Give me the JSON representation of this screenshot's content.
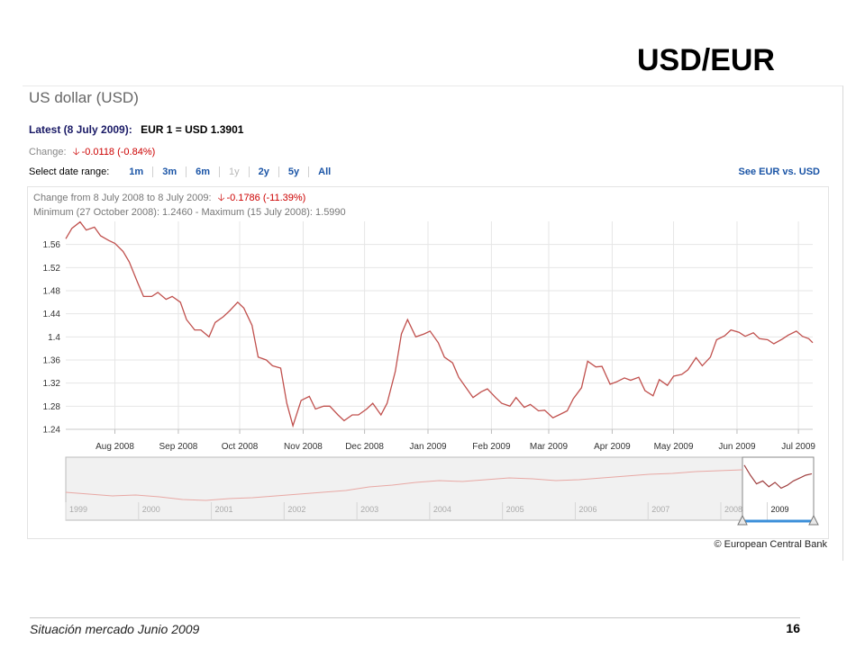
{
  "slide_title": "USD/EUR",
  "box_title": "US dollar (USD)",
  "latest_label": "Latest (8 July 2009):",
  "latest_value": "EUR 1 = USD 1.3901",
  "change_label": "Change:",
  "change_value": "-0.0118 (-0.84%)",
  "range_label": "Select date range:",
  "range_options": [
    {
      "label": "1m",
      "enabled": true
    },
    {
      "label": "3m",
      "enabled": true
    },
    {
      "label": "6m",
      "enabled": true
    },
    {
      "label": "1y",
      "enabled": false
    },
    {
      "label": "2y",
      "enabled": true
    },
    {
      "label": "5y",
      "enabled": true
    },
    {
      "label": "All",
      "enabled": true
    }
  ],
  "see_link": "See EUR vs. USD",
  "info_change_label": "Change from 8 July 2008 to 8 July 2009:",
  "info_change_value": "-0.1786 (-11.39%)",
  "info_minmax": "Minimum (27 October 2008): 1.2460 - Maximum (15 July 2008): 1.5990",
  "copyright": "© European Central Bank",
  "footer_left": "Situación mercado Junio 2009",
  "footer_right": "16",
  "colors": {
    "line": "#c0504d",
    "overview_line": "#e8a8a4",
    "grid": "#e6e6e6",
    "accent": "#1a54a6",
    "change": "#cc0000"
  },
  "chart_data": {
    "type": "line",
    "title": "",
    "xlabel": "",
    "ylabel": "",
    "ylim": [
      1.24,
      1.6
    ],
    "yticks": [
      1.24,
      1.28,
      1.32,
      1.36,
      1.4,
      1.44,
      1.48,
      1.52,
      1.56
    ],
    "ytick_labels": [
      "1.24",
      "1.28",
      "1.32",
      "1.36",
      "1.4",
      "1.44",
      "1.48",
      "1.52",
      "1.56"
    ],
    "xlim": [
      "2008-07-08",
      "2009-07-08"
    ],
    "xticks": [
      {
        "date": "2008-08-01",
        "label": "Aug 2008"
      },
      {
        "date": "2008-09-01",
        "label": "Sep 2008"
      },
      {
        "date": "2008-10-01",
        "label": "Oct 2008"
      },
      {
        "date": "2008-11-01",
        "label": "Nov 2008"
      },
      {
        "date": "2008-12-01",
        "label": "Dec 2008"
      },
      {
        "date": "2009-01-01",
        "label": "Jan 2009"
      },
      {
        "date": "2009-02-01",
        "label": "Feb 2009"
      },
      {
        "date": "2009-03-01",
        "label": "Mar 2009"
      },
      {
        "date": "2009-04-01",
        "label": "Apr 2009"
      },
      {
        "date": "2009-05-01",
        "label": "May 2009"
      },
      {
        "date": "2009-06-01",
        "label": "Jun 2009"
      },
      {
        "date": "2009-07-01",
        "label": "Jul 2009"
      }
    ],
    "grid": true,
    "series": [
      {
        "points": [
          [
            "2008-07-08",
            1.57
          ],
          [
            "2008-07-11",
            1.588
          ],
          [
            "2008-07-15",
            1.599
          ],
          [
            "2008-07-18",
            1.585
          ],
          [
            "2008-07-22",
            1.59
          ],
          [
            "2008-07-25",
            1.575
          ],
          [
            "2008-07-29",
            1.567
          ],
          [
            "2008-08-01",
            1.562
          ],
          [
            "2008-08-05",
            1.548
          ],
          [
            "2008-08-08",
            1.53
          ],
          [
            "2008-08-12",
            1.495
          ],
          [
            "2008-08-15",
            1.47
          ],
          [
            "2008-08-19",
            1.47
          ],
          [
            "2008-08-22",
            1.477
          ],
          [
            "2008-08-26",
            1.465
          ],
          [
            "2008-08-29",
            1.47
          ],
          [
            "2008-09-02",
            1.46
          ],
          [
            "2008-09-05",
            1.43
          ],
          [
            "2008-09-09",
            1.412
          ],
          [
            "2008-09-12",
            1.412
          ],
          [
            "2008-09-16",
            1.4
          ],
          [
            "2008-09-19",
            1.425
          ],
          [
            "2008-09-23",
            1.435
          ],
          [
            "2008-09-26",
            1.445
          ],
          [
            "2008-09-30",
            1.46
          ],
          [
            "2008-10-03",
            1.45
          ],
          [
            "2008-10-07",
            1.42
          ],
          [
            "2008-10-10",
            1.365
          ],
          [
            "2008-10-14",
            1.36
          ],
          [
            "2008-10-17",
            1.35
          ],
          [
            "2008-10-21",
            1.346
          ],
          [
            "2008-10-24",
            1.285
          ],
          [
            "2008-10-27",
            1.246
          ],
          [
            "2008-10-31",
            1.29
          ],
          [
            "2008-11-04",
            1.297
          ],
          [
            "2008-11-07",
            1.275
          ],
          [
            "2008-11-11",
            1.28
          ],
          [
            "2008-11-14",
            1.28
          ],
          [
            "2008-11-18",
            1.265
          ],
          [
            "2008-11-21",
            1.255
          ],
          [
            "2008-11-25",
            1.265
          ],
          [
            "2008-11-28",
            1.265
          ],
          [
            "2008-12-02",
            1.275
          ],
          [
            "2008-12-05",
            1.285
          ],
          [
            "2008-12-09",
            1.265
          ],
          [
            "2008-12-12",
            1.285
          ],
          [
            "2008-12-16",
            1.34
          ],
          [
            "2008-12-19",
            1.405
          ],
          [
            "2008-12-22",
            1.43
          ],
          [
            "2008-12-26",
            1.4
          ],
          [
            "2008-12-30",
            1.405
          ],
          [
            "2009-01-02",
            1.41
          ],
          [
            "2009-01-06",
            1.39
          ],
          [
            "2009-01-09",
            1.365
          ],
          [
            "2009-01-13",
            1.355
          ],
          [
            "2009-01-16",
            1.33
          ],
          [
            "2009-01-20",
            1.31
          ],
          [
            "2009-01-23",
            1.295
          ],
          [
            "2009-01-27",
            1.305
          ],
          [
            "2009-01-30",
            1.31
          ],
          [
            "2009-02-03",
            1.295
          ],
          [
            "2009-02-06",
            1.285
          ],
          [
            "2009-02-10",
            1.28
          ],
          [
            "2009-02-13",
            1.295
          ],
          [
            "2009-02-17",
            1.278
          ],
          [
            "2009-02-20",
            1.283
          ],
          [
            "2009-02-24",
            1.272
          ],
          [
            "2009-02-27",
            1.273
          ],
          [
            "2009-03-03",
            1.26
          ],
          [
            "2009-03-06",
            1.265
          ],
          [
            "2009-03-10",
            1.272
          ],
          [
            "2009-03-13",
            1.293
          ],
          [
            "2009-03-17",
            1.312
          ],
          [
            "2009-03-20",
            1.358
          ],
          [
            "2009-03-24",
            1.348
          ],
          [
            "2009-03-27",
            1.349
          ],
          [
            "2009-03-31",
            1.318
          ],
          [
            "2009-04-03",
            1.322
          ],
          [
            "2009-04-07",
            1.329
          ],
          [
            "2009-04-10",
            1.325
          ],
          [
            "2009-04-14",
            1.33
          ],
          [
            "2009-04-17",
            1.307
          ],
          [
            "2009-04-21",
            1.298
          ],
          [
            "2009-04-24",
            1.326
          ],
          [
            "2009-04-28",
            1.316
          ],
          [
            "2009-05-01",
            1.332
          ],
          [
            "2009-05-05",
            1.335
          ],
          [
            "2009-05-08",
            1.343
          ],
          [
            "2009-05-12",
            1.364
          ],
          [
            "2009-05-15",
            1.35
          ],
          [
            "2009-05-19",
            1.365
          ],
          [
            "2009-05-22",
            1.395
          ],
          [
            "2009-05-26",
            1.402
          ],
          [
            "2009-05-29",
            1.412
          ],
          [
            "2009-06-02",
            1.408
          ],
          [
            "2009-06-05",
            1.401
          ],
          [
            "2009-06-09",
            1.407
          ],
          [
            "2009-06-12",
            1.397
          ],
          [
            "2009-06-16",
            1.395
          ],
          [
            "2009-06-19",
            1.388
          ],
          [
            "2009-06-23",
            1.396
          ],
          [
            "2009-06-26",
            1.403
          ],
          [
            "2009-06-30",
            1.41
          ],
          [
            "2009-07-03",
            1.401
          ],
          [
            "2009-07-06",
            1.397
          ],
          [
            "2009-07-08",
            1.39
          ]
        ]
      }
    ],
    "overview": {
      "labels": [
        "1999",
        "2000",
        "2001",
        "2002",
        "2003",
        "2004",
        "2005",
        "2006",
        "2007",
        "2008",
        "2009"
      ],
      "selected": "2009"
    }
  }
}
